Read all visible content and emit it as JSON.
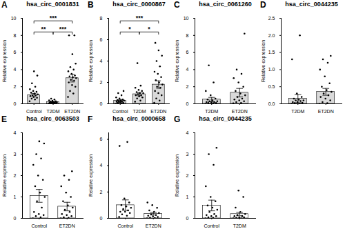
{
  "chart_data": [
    {
      "type": "bar",
      "panel": "A",
      "title": "hsa_circ_0001831",
      "ylabel": "Relative expression",
      "categories": [
        "Control",
        "T2DM",
        "ET2DN"
      ],
      "values": [
        1.0,
        0.2,
        3.0
      ],
      "errors": [
        0.2,
        0.05,
        0.45
      ],
      "points": [
        [
          0.3,
          0.5,
          0.6,
          0.7,
          0.8,
          0.9,
          1.0,
          1.0,
          1.1,
          1.2,
          1.3,
          1.4,
          1.5,
          1.7,
          2.0,
          2.4,
          3.3,
          3.8
        ],
        [
          0.02,
          0.05,
          0.08,
          0.1,
          0.1,
          0.12,
          0.15,
          0.18,
          0.2,
          0.22,
          0.25,
          0.3,
          0.35,
          0.4,
          0.5,
          0.6
        ],
        [
          0.8,
          1.2,
          1.5,
          2.0,
          2.2,
          2.5,
          2.7,
          2.8,
          3.0,
          3.1,
          3.2,
          3.3,
          3.5,
          3.8,
          4.0,
          4.3,
          4.7,
          5.8,
          8.0,
          8.0
        ]
      ],
      "colors": [
        "#d9d9d9",
        "#d9d9d9",
        "#d9d9d9"
      ],
      "ylim": [
        0,
        10
      ],
      "yticks": [
        0,
        2,
        4,
        6,
        8,
        10
      ],
      "annotations": [
        {
          "from": "Control",
          "to": "T2DM",
          "label": "**"
        },
        {
          "from": "T2DM",
          "to": "ET2DN",
          "label": "***"
        },
        {
          "from": "Control",
          "to": "ET2DN",
          "label": "***"
        }
      ]
    },
    {
      "type": "bar",
      "panel": "B",
      "title": "hsa_circ_0000867",
      "ylabel": "Relative expression",
      "categories": [
        "Control",
        "T2DM",
        "ET2DN"
      ],
      "values": [
        0.3,
        0.9,
        1.8
      ],
      "errors": [
        0.1,
        0.15,
        0.35
      ],
      "points": [
        [
          0.0,
          0.05,
          0.1,
          0.1,
          0.15,
          0.2,
          0.2,
          0.25,
          0.3,
          0.3,
          0.35,
          0.4,
          0.5,
          0.6,
          0.8,
          1.0,
          1.2
        ],
        [
          0.2,
          0.3,
          0.5,
          0.6,
          0.7,
          0.8,
          0.8,
          0.9,
          1.0,
          1.0,
          1.1,
          1.2,
          1.3,
          1.5,
          1.7,
          3.8
        ],
        [
          0.1,
          0.3,
          0.5,
          0.8,
          1.0,
          1.2,
          1.5,
          1.6,
          1.8,
          2.0,
          2.2,
          2.5,
          2.8,
          3.0,
          3.5,
          4.0,
          4.5,
          5.0,
          5.7
        ]
      ],
      "colors": [
        "#d9d9d9",
        "#d9d9d9",
        "#d9d9d9"
      ],
      "ylim": [
        0,
        8
      ],
      "yticks": [
        0,
        2,
        4,
        6,
        8
      ],
      "annotations": [
        {
          "from": "Control",
          "to": "T2DM",
          "label": "*"
        },
        {
          "from": "T2DM",
          "to": "ET2DN",
          "label": "*"
        },
        {
          "from": "Control",
          "to": "ET2DN",
          "label": "***"
        }
      ]
    },
    {
      "type": "bar",
      "panel": "C",
      "title": "hsa_circ_0061260",
      "ylabel": "Relative expression",
      "categories": [
        "T2DM",
        "ET2DN"
      ],
      "values": [
        0.5,
        1.3
      ],
      "errors": [
        0.25,
        0.5
      ],
      "points": [
        [
          0.0,
          0.05,
          0.1,
          0.1,
          0.15,
          0.2,
          0.2,
          0.3,
          0.3,
          0.4,
          0.5,
          0.6,
          1.0,
          1.5,
          2.5,
          4.5
        ],
        [
          0.05,
          0.1,
          0.2,
          0.3,
          0.4,
          0.5,
          0.6,
          0.8,
          1.0,
          1.2,
          1.5,
          2.0,
          2.5,
          3.0,
          3.5,
          4.0,
          8.2
        ]
      ],
      "colors": [
        "#d9d9d9",
        "#d9d9d9"
      ],
      "ylim": [
        0,
        10
      ],
      "yticks": [
        0,
        2,
        4,
        6,
        8,
        10
      ],
      "annotations": []
    },
    {
      "type": "bar",
      "panel": "D",
      "title": "hsa_circ_0044235",
      "ylabel": "Relative expression",
      "categories": [
        "T2DM",
        "ET2DN"
      ],
      "values": [
        0.15,
        0.35
      ],
      "errors": [
        0.12,
        0.1
      ],
      "points": [
        [
          0.0,
          0.0,
          0.02,
          0.03,
          0.05,
          0.05,
          0.08,
          0.1,
          0.1,
          0.12,
          0.15,
          0.2,
          0.3,
          1.3,
          2.0
        ],
        [
          0.0,
          0.02,
          0.05,
          0.1,
          0.15,
          0.2,
          0.25,
          0.3,
          0.35,
          0.4,
          0.5,
          0.6,
          0.8,
          1.0,
          1.2,
          1.3,
          1.4
        ]
      ],
      "colors": [
        "#d9d9d9",
        "#d9d9d9"
      ],
      "ylim": [
        0,
        2.5
      ],
      "yticks": [
        {
          "value": 0,
          "label": "0.0"
        },
        0.5,
        {
          "value": 1,
          "label": "1.0"
        },
        1.5,
        {
          "value": 2,
          "label": "2.0"
        },
        2.5
      ],
      "annotations": []
    },
    {
      "type": "bar",
      "panel": "E",
      "title": "hsa_circ_0063503",
      "ylabel": "Relative expression",
      "categories": [
        "Control",
        "ET2DN"
      ],
      "values": [
        1.05,
        0.55
      ],
      "errors": [
        0.3,
        0.2
      ],
      "points": [
        [
          0.0,
          0.05,
          0.1,
          0.15,
          0.2,
          0.3,
          0.5,
          0.8,
          1.0,
          1.2,
          1.5,
          1.8,
          2.0,
          2.5,
          2.8,
          3.0,
          3.5,
          3.6
        ],
        [
          0.0,
          0.02,
          0.05,
          0.1,
          0.15,
          0.2,
          0.3,
          0.4,
          0.5,
          0.6,
          0.8,
          1.0,
          1.2,
          1.5,
          1.8,
          2.0,
          2.2
        ]
      ],
      "colors": [
        "#ffffff",
        "#ffffff"
      ],
      "ylim": [
        0,
        4
      ],
      "yticks": [
        0,
        1,
        2,
        3,
        4
      ],
      "annotations": []
    },
    {
      "type": "bar",
      "panel": "F",
      "title": "hsa_circ_0000658",
      "ylabel": "Relative expression",
      "categories": [
        "Control",
        "ET2DN"
      ],
      "values": [
        1.0,
        0.35
      ],
      "errors": [
        0.4,
        0.1
      ],
      "points": [
        [
          0.1,
          0.2,
          0.3,
          0.4,
          0.5,
          0.5,
          0.6,
          0.7,
          0.8,
          0.9,
          1.0,
          1.2,
          1.5,
          5.5,
          5.8
        ],
        [
          0.0,
          0.02,
          0.05,
          0.1,
          0.15,
          0.2,
          0.25,
          0.3,
          0.4,
          0.5,
          0.6,
          0.8,
          1.0,
          1.2
        ]
      ],
      "colors": [
        "#ffffff",
        "#ffffff"
      ],
      "ylim": [
        0,
        6.5
      ],
      "yticks": [
        0,
        2,
        4,
        6
      ],
      "annotations": []
    },
    {
      "type": "bar",
      "panel": "G",
      "title": "hsa_circ_0044235",
      "ylabel": "Relative expression",
      "categories": [
        "Control",
        "T2DM"
      ],
      "values": [
        0.6,
        0.2
      ],
      "errors": [
        0.25,
        0.08
      ],
      "points": [
        [
          0.0,
          0.02,
          0.05,
          0.1,
          0.1,
          0.15,
          0.2,
          0.3,
          0.4,
          0.5,
          0.6,
          0.8,
          1.0,
          1.5,
          2.5,
          3.0,
          3.3
        ],
        [
          0.0,
          0.0,
          0.02,
          0.05,
          0.05,
          0.1,
          0.1,
          0.15,
          0.2,
          0.3,
          0.5,
          1.0,
          1.3
        ]
      ],
      "colors": [
        "#ffffff",
        "#ffffff"
      ],
      "ylim": [
        0,
        4
      ],
      "yticks": [
        0,
        1,
        2,
        3,
        4
      ],
      "annotations": []
    }
  ]
}
